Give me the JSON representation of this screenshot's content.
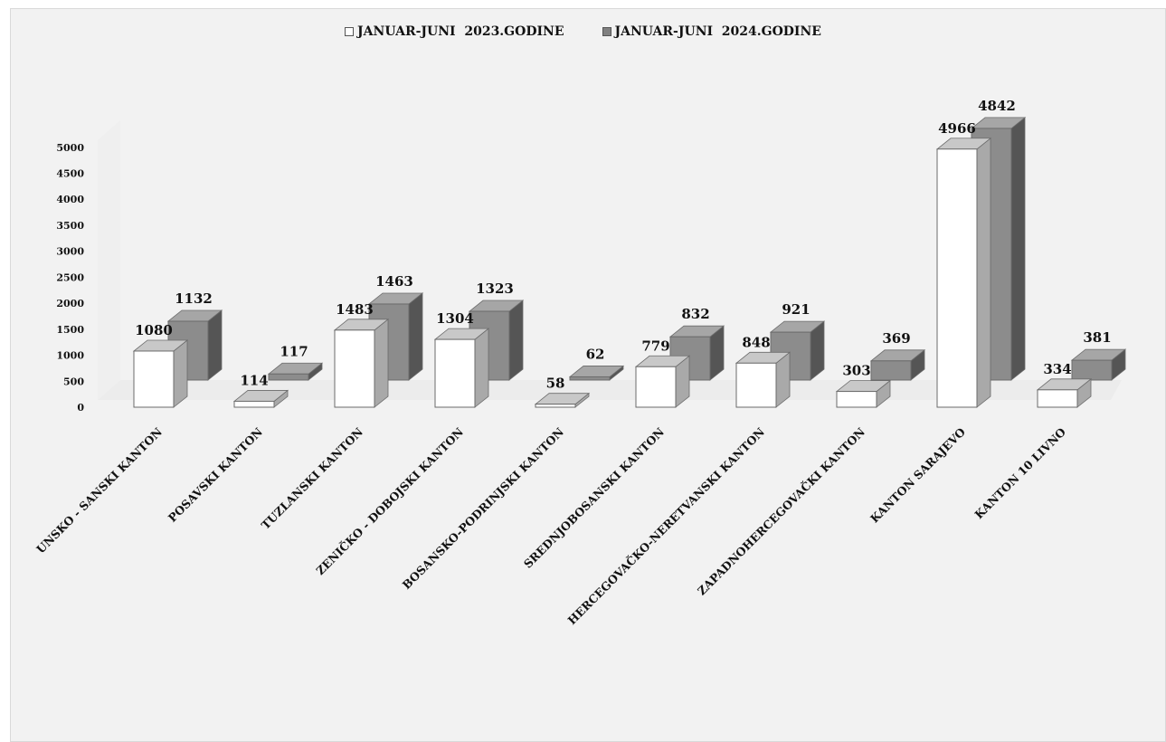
{
  "chart_data": {
    "type": "bar",
    "title": "",
    "xlabel": "",
    "ylabel": "",
    "ylim": [
      0,
      5000
    ],
    "yticks": [
      0,
      500,
      1000,
      1500,
      2000,
      2500,
      3000,
      3500,
      4000,
      4500,
      5000
    ],
    "categories": [
      "UNSKO - SANSKI KANTON",
      "POSAVSKI KANTON",
      "TUZLANSKI KANTON",
      "ZENIČKO - DOBOJSKI KANTON",
      "BOSANSKO-PODRINJSKI KANTON",
      "SREDNJOBOSANSKI KANTON",
      "HERCEGOVAČKO-NERETVANSKI KANTON",
      "ZAPADNOHERCEGOVAČKI KANTON",
      "KANTON SARAJEVO",
      "KANTON 10 LIVNO"
    ],
    "series": [
      {
        "name": "JANUAR-JUNI  2023.GODINE",
        "values": [
          1080,
          114,
          1483,
          1304,
          58,
          779,
          848,
          303,
          4966,
          334
        ],
        "color": "#ffffff"
      },
      {
        "name": "JANUAR-JUNI  2024.GODINE",
        "values": [
          1132,
          117,
          1463,
          1323,
          62,
          832,
          921,
          369,
          4842,
          381
        ],
        "color": "#808080"
      }
    ],
    "legend_position": "top-center",
    "grid": false,
    "style": "3d-clustered-column"
  }
}
